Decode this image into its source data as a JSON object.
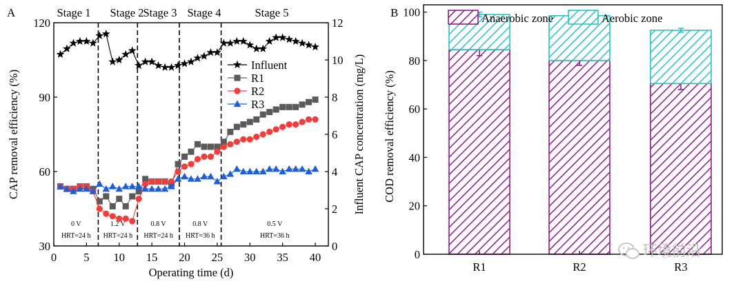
{
  "watermark": {
    "text": "环境前沿"
  },
  "chart_data": [
    {
      "panel": "A",
      "type": "line",
      "xlabel": "Operating time (d)",
      "ylabel": "CAP removal efficiency (%)",
      "y2label": "Influent CAP concentration (mg/L)",
      "xlim": [
        0,
        42
      ],
      "ylim": [
        30,
        120
      ],
      "y2lim": [
        0,
        12
      ],
      "xticks": [
        0,
        5,
        10,
        15,
        20,
        25,
        30,
        35,
        40
      ],
      "yticks": [
        30,
        60,
        90,
        120
      ],
      "y2ticks": [
        0,
        2,
        4,
        6,
        8,
        10,
        12
      ],
      "stages": [
        {
          "label": "Stage 1",
          "condition": [
            "0 V",
            "HRT=24 h"
          ]
        },
        {
          "label": "Stage 2",
          "condition": [
            "1.2 V",
            "HRT=24 h"
          ]
        },
        {
          "label": "Stage 3",
          "condition": [
            "0.8 V",
            "HRT=24 h"
          ]
        },
        {
          "label": "Stage 4",
          "condition": [
            "0.8 V",
            "HRT=36 h"
          ]
        },
        {
          "label": "Stage 5",
          "condition": [
            "0.5 V",
            "HRT=36 h"
          ]
        }
      ],
      "stage_boundaries": [
        6.8,
        12.8,
        19.2,
        25.6
      ],
      "series": [
        {
          "name": "Influent",
          "axis": "right",
          "marker": "star",
          "color": "#000000",
          "x": [
            1,
            2,
            3,
            4,
            5,
            6,
            7,
            8,
            9,
            10,
            11,
            12,
            13,
            14,
            15,
            16,
            17,
            18,
            19,
            20,
            21,
            22,
            23,
            24,
            25,
            26,
            27,
            28,
            29,
            30,
            31,
            32,
            33,
            34,
            35,
            36,
            37,
            38,
            39,
            40
          ],
          "y": [
            10.3,
            10.6,
            10.9,
            11.0,
            11.0,
            10.9,
            11.3,
            11.4,
            9.9,
            10.0,
            10.3,
            10.5,
            9.7,
            9.9,
            9.9,
            9.7,
            9.6,
            9.6,
            9.7,
            9.8,
            9.9,
            10.1,
            10.2,
            10.4,
            10.4,
            10.9,
            10.9,
            11.0,
            11.0,
            10.8,
            10.6,
            10.6,
            11.0,
            11.2,
            11.2,
            11.1,
            11.0,
            10.9,
            10.8,
            10.7
          ]
        },
        {
          "name": "R1",
          "axis": "left",
          "marker": "square",
          "color": "#5a5a5a",
          "x": [
            1,
            2,
            3,
            4,
            5,
            6,
            7,
            8,
            9,
            10,
            11,
            12,
            13,
            14,
            15,
            16,
            17,
            18,
            19,
            20,
            21,
            22,
            23,
            24,
            25,
            26,
            27,
            28,
            29,
            30,
            31,
            32,
            33,
            34,
            35,
            36,
            37,
            38,
            39,
            40
          ],
          "y": [
            54,
            53,
            53,
            54,
            54,
            53,
            48,
            50,
            46,
            49,
            46,
            50,
            52,
            57,
            56,
            56,
            56,
            55,
            63,
            66,
            68,
            71,
            70,
            70,
            70,
            72,
            76,
            78,
            79,
            80,
            81,
            83,
            84,
            85,
            86,
            86,
            86,
            87,
            88,
            89
          ]
        },
        {
          "name": "R2",
          "axis": "left",
          "marker": "circle",
          "color": "#f23d3d",
          "x": [
            1,
            2,
            3,
            4,
            5,
            6,
            7,
            8,
            9,
            10,
            11,
            12,
            13,
            14,
            15,
            16,
            17,
            18,
            19,
            20,
            21,
            22,
            23,
            24,
            25,
            26,
            27,
            28,
            29,
            30,
            31,
            32,
            33,
            34,
            35,
            36,
            37,
            38,
            39,
            40
          ],
          "y": [
            54,
            53,
            53,
            54,
            54,
            52,
            45,
            43,
            42,
            41,
            41,
            40,
            49,
            55,
            56,
            56,
            56,
            56,
            60,
            62,
            63,
            65,
            66,
            66,
            68,
            70,
            71,
            72,
            73,
            73,
            74,
            75,
            76,
            77,
            78,
            79,
            79,
            80,
            81,
            81
          ]
        },
        {
          "name": "R3",
          "axis": "left",
          "marker": "triangle",
          "color": "#1f5fd6",
          "x": [
            1,
            2,
            3,
            4,
            5,
            6,
            7,
            8,
            9,
            10,
            11,
            12,
            13,
            14,
            15,
            16,
            17,
            18,
            19,
            20,
            21,
            22,
            23,
            24,
            25,
            26,
            27,
            28,
            29,
            30,
            31,
            32,
            33,
            34,
            35,
            36,
            37,
            38,
            39,
            40
          ],
          "y": [
            54,
            53,
            52,
            53,
            53,
            52,
            55,
            53,
            54,
            53,
            54,
            54,
            54,
            53,
            53,
            53,
            53,
            54,
            57,
            58,
            57,
            57,
            58,
            58,
            56,
            58,
            59,
            61,
            60,
            60,
            60,
            60,
            61,
            61,
            60,
            61,
            61,
            61,
            60,
            61
          ]
        }
      ]
    },
    {
      "panel": "B",
      "type": "bar",
      "stacked": true,
      "categories": [
        "R1",
        "R2",
        "R3"
      ],
      "ylabel": "COD removal efficiency (%)",
      "ylim": [
        0,
        100
      ],
      "yticks": [
        0,
        20,
        40,
        60,
        80,
        100
      ],
      "series": [
        {
          "name": "Anaerobic zone",
          "color": "#8e1a8e",
          "pattern": "hatch",
          "values": [
            84.5,
            80.0,
            70.5
          ],
          "errors": [
            2.5,
            2.0,
            2.5
          ]
        },
        {
          "name": "Aerobic zone",
          "color": "#2bc1c1",
          "pattern": "hatch",
          "values": [
            14.5,
            18.5,
            22.0
          ],
          "errors": [
            1.0,
            0.8,
            0.8
          ]
        }
      ]
    }
  ]
}
